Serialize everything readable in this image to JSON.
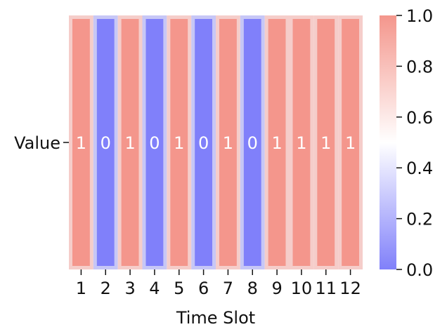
{
  "chart_data": {
    "type": "heatmap",
    "row_labels": [
      "Value"
    ],
    "col_labels": [
      "1",
      "2",
      "3",
      "4",
      "5",
      "6",
      "7",
      "8",
      "9",
      "10",
      "11",
      "12"
    ],
    "values": [
      [
        1,
        0,
        1,
        0,
        1,
        0,
        1,
        0,
        1,
        1,
        1,
        1
      ]
    ],
    "annotations": [
      "1",
      "0",
      "1",
      "0",
      "1",
      "0",
      "1",
      "0",
      "1",
      "1",
      "1",
      "1"
    ],
    "xlabel": "Time Slot",
    "ylabel": "",
    "colormap": "bwr",
    "vmin": 0.0,
    "vmax": 1.0,
    "colorbar_ticks": [
      "0.0",
      "0.2",
      "0.4",
      "0.6",
      "0.8",
      "1.0"
    ],
    "colors": {
      "low": "#8080fa",
      "mid": "#ffffff",
      "high": "#f4968c",
      "cell_border": "#f5cdca",
      "cell_border_low": "#c7c7f6"
    }
  }
}
